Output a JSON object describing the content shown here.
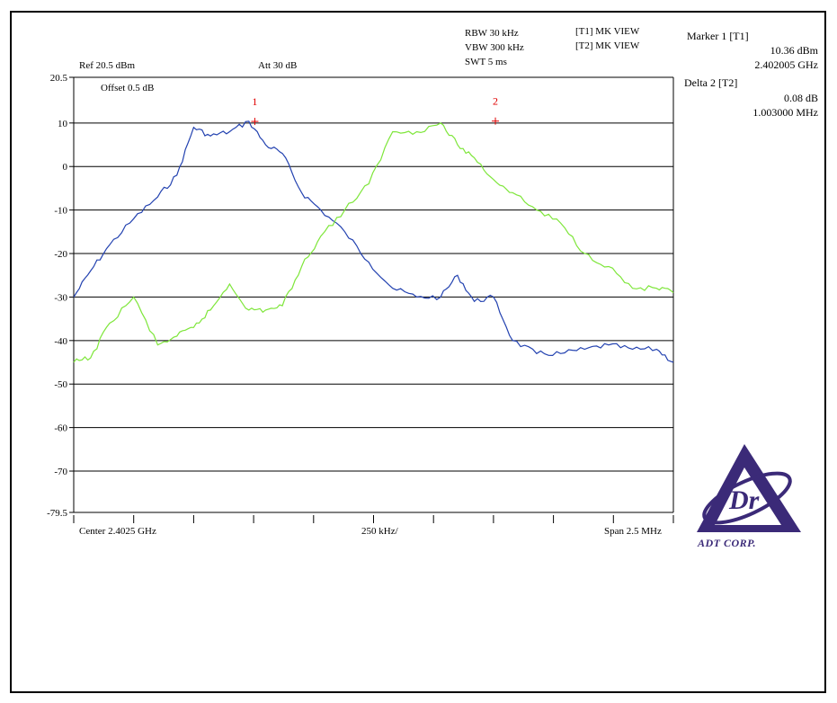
{
  "header": {
    "rbw": "RBW 30 kHz",
    "vbw": "VBW 300 kHz",
    "swt": "SWT 5 ms",
    "t1": "[T1] MK VIEW",
    "t2": "[T2] MK VIEW",
    "ref": "Ref 20.5 dBm",
    "att": "Att  30 dB",
    "offset": "Offset 0.5 dB"
  },
  "markers": {
    "m1_title": "Marker 1 [T1]",
    "m1_level": "10.36 dBm",
    "m1_freq": "2.402005 GHz",
    "d2_title": "Delta 2 [T2]",
    "d2_level": "0.08 dB",
    "d2_freq": "1.003000 MHz",
    "m1_label": "1",
    "m2_label": "2"
  },
  "footer": {
    "center": "Center 2.4025 GHz",
    "div": "250 kHz/",
    "span": "Span 2.5 MHz"
  },
  "logo": {
    "text": "ADT CORP.",
    "color": "#3b2a78"
  },
  "colors": {
    "trace1": "#2342b0",
    "trace2": "#7ee63a",
    "marker": "#e00000",
    "grid": "#000000"
  },
  "chart_data": {
    "type": "line",
    "title": "",
    "xlabel": "",
    "ylabel": "",
    "xlim": [
      2.40125,
      2.40375
    ],
    "x_unit": "GHz",
    "ylim": [
      -79.5,
      20.5
    ],
    "y_unit": "dBm",
    "yticks": [
      "20.5",
      "10",
      "0",
      "-10",
      "-20",
      "-30",
      "-40",
      "-50",
      "-60",
      "-70",
      "-79.5"
    ],
    "ytick_values": [
      20.5,
      10,
      0,
      -10,
      -20,
      -30,
      -40,
      -50,
      -60,
      -70,
      -79.5
    ],
    "grid": true,
    "markers": [
      {
        "label": "1",
        "x": 2.402005,
        "y": 10.36
      },
      {
        "label": "2",
        "x": 2.403008,
        "y": 10.44
      }
    ],
    "series": [
      {
        "x": [
          2.40125,
          2.40132,
          2.4014,
          2.4015,
          2.4016,
          2.40168,
          2.40175,
          2.40182,
          2.4019,
          2.40198,
          2.40205,
          2.40212,
          2.4022,
          2.40228,
          2.40238,
          2.40248,
          2.40258,
          2.40268,
          2.40278,
          2.40285,
          2.40292,
          2.403,
          2.40308,
          2.40318,
          2.40328,
          2.40338,
          2.40348,
          2.40358,
          2.40368,
          2.40375
        ],
        "y": [
          -30,
          -24,
          -18,
          -12,
          -7,
          -2,
          9,
          7,
          8,
          10.4,
          5,
          3,
          -6,
          -10,
          -15,
          -22,
          -28,
          -30,
          -30,
          -25,
          -31,
          -30,
          -40,
          -43,
          -43,
          -42,
          -41,
          -42,
          -42,
          -45
        ]
      },
      {
        "x": [
          2.40125,
          2.40132,
          2.4014,
          2.4015,
          2.4016,
          2.40168,
          2.40175,
          2.40182,
          2.4019,
          2.40198,
          2.40205,
          2.40212,
          2.4022,
          2.40228,
          2.40238,
          2.40248,
          2.40258,
          2.40268,
          2.40278,
          2.40285,
          2.40292,
          2.403,
          2.40308,
          2.40318,
          2.40328,
          2.40338,
          2.40348,
          2.40358,
          2.40368,
          2.40375
        ],
        "y": [
          -45,
          -44,
          -36,
          -30,
          -41,
          -39,
          -37,
          -33,
          -27,
          -33,
          -33,
          -32,
          -23,
          -16,
          -10,
          -4,
          8,
          8,
          10,
          5,
          2,
          -3,
          -6,
          -10,
          -13,
          -20,
          -23,
          -28,
          -28,
          -29
        ]
      }
    ]
  }
}
